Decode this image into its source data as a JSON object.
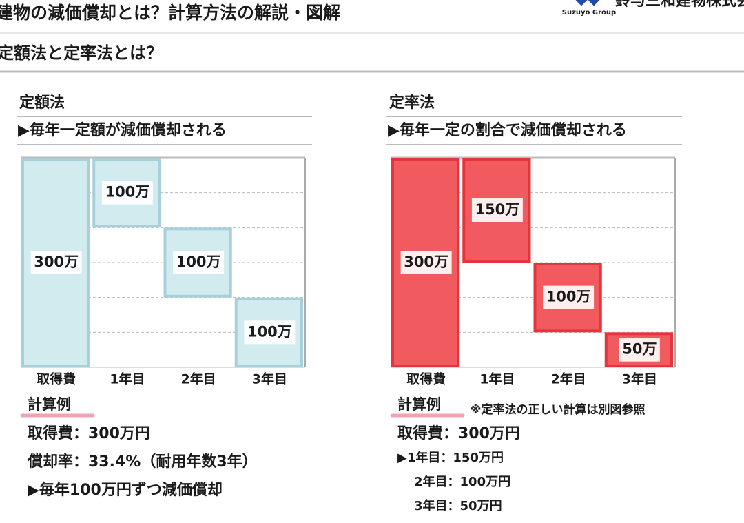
{
  "header": {
    "title": "建物の減価償却とは？計算方法の解説・図解",
    "logo": "Suzuyo Group",
    "company": "鈴与三和建物株式会社"
  },
  "section_title": "定額法と定率法とは？",
  "chart_data": [
    {
      "type": "waterfall",
      "title": "定額法",
      "subtitle": "▶毎年一定額が減価償却される",
      "categories": [
        "取得費",
        "1年目",
        "2年目",
        "3年目"
      ],
      "values": [
        300,
        100,
        100,
        100
      ],
      "value_labels": [
        "300万",
        "100万",
        "100万",
        "100万"
      ],
      "color": "#d2ebef",
      "edge_color": "#a8d0da",
      "ylim": [
        0,
        300
      ],
      "yticks": [
        0,
        50,
        100,
        150,
        200,
        250,
        300
      ],
      "grid": true
    },
    {
      "type": "waterfall",
      "title": "定率法",
      "subtitle": "▶毎年一定の割合で減価償却される",
      "categories": [
        "取得費",
        "1年目",
        "2年目",
        "3年目"
      ],
      "values": [
        300,
        150,
        100,
        50
      ],
      "value_labels": [
        "300万",
        "150万",
        "100万",
        "50万"
      ],
      "color": "#f15a5f",
      "edge_color": "#e3353b",
      "ylim": [
        0,
        300
      ],
      "yticks": [
        0,
        50,
        100,
        150,
        200,
        250,
        300
      ],
      "grid": true
    }
  ],
  "examples": [
    {
      "heading": "計算例",
      "lines": [
        "取得費：300万円",
        "償却率：33.4%（耐用年数3年）",
        "▶毎年100万円ずつ減価償却"
      ]
    },
    {
      "heading": "計算例",
      "note": "※定率法の正しい計算は別図参照",
      "lines": [
        "取得費：300万円",
        "▶1年目：150万円",
        "2年目：100万円",
        "3年目：50万円"
      ]
    }
  ]
}
